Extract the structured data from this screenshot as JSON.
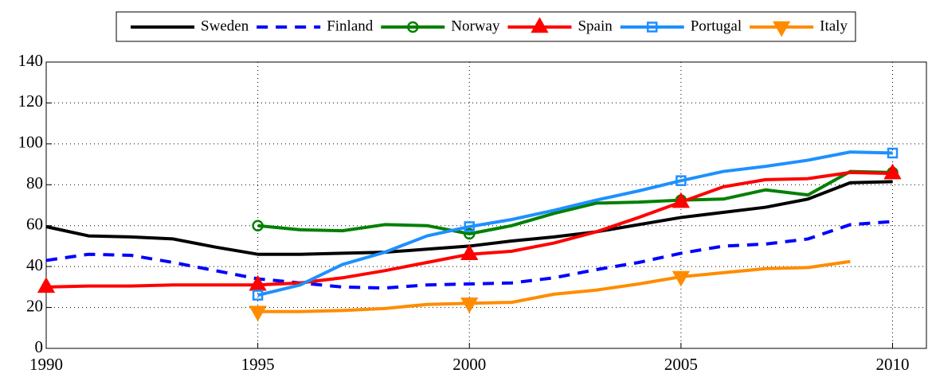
{
  "chart_data": {
    "type": "line",
    "x": [
      1990,
      1991,
      1992,
      1993,
      1994,
      1995,
      1996,
      1997,
      1998,
      1999,
      2000,
      2001,
      2002,
      2003,
      2004,
      2005,
      2006,
      2007,
      2008,
      2009,
      2010
    ],
    "xlim": [
      1990,
      2010.8
    ],
    "xticks": [
      1990,
      1995,
      2000,
      2005,
      2010
    ],
    "ylim": [
      0,
      140
    ],
    "yticks": [
      0,
      20,
      40,
      60,
      80,
      100,
      120,
      140
    ],
    "grid": true,
    "legend": "top",
    "markevery": 5,
    "series": [
      {
        "name": "Sweden",
        "color": "#000000",
        "linestyle": "solid",
        "marker": "none",
        "values": [
          59.5,
          55,
          54.5,
          53.5,
          49.5,
          46,
          46,
          46.5,
          47,
          48.5,
          50,
          52.5,
          54.5,
          57,
          60.5,
          64,
          66.5,
          69,
          73,
          81,
          81.5
        ]
      },
      {
        "name": "Finland",
        "color": "#0000ff",
        "linestyle": "dashed",
        "marker": "none",
        "values": [
          43,
          46,
          45.5,
          42,
          38,
          34,
          32,
          30,
          29.5,
          31,
          31.5,
          32,
          34.5,
          38.5,
          42,
          46.5,
          50,
          51,
          53.5,
          60.5,
          62
        ]
      },
      {
        "name": "Norway",
        "color": "#008000",
        "linestyle": "solid",
        "marker": "circle",
        "values": [
          null,
          null,
          null,
          null,
          null,
          60,
          58,
          57.5,
          60.5,
          60,
          56,
          60,
          66,
          71,
          71.5,
          72.5,
          73,
          77.5,
          75,
          86.5,
          86
        ]
      },
      {
        "name": "Spain",
        "color": "#ff0000",
        "linestyle": "solid",
        "marker": "triangle-up",
        "values": [
          30,
          30.5,
          30.5,
          31,
          31,
          31,
          32,
          34.5,
          38,
          42,
          46,
          47.5,
          51.5,
          57,
          64,
          71.5,
          79,
          82.5,
          83,
          86,
          85.5
        ]
      },
      {
        "name": "Portugal",
        "color": "#1e90ff",
        "linestyle": "solid",
        "marker": "square",
        "values": [
          null,
          null,
          null,
          null,
          null,
          26,
          31,
          41,
          47,
          55,
          59.5,
          63,
          67.5,
          72.5,
          77,
          82,
          86.5,
          89,
          92,
          96,
          95.5
        ]
      },
      {
        "name": "Italy",
        "color": "#ff8c00",
        "linestyle": "solid",
        "marker": "triangle-down",
        "values": [
          null,
          null,
          null,
          null,
          null,
          18,
          18,
          18.5,
          19.5,
          21.5,
          22,
          22.5,
          26.5,
          28.5,
          31.5,
          35,
          37,
          39,
          39.5,
          42.5,
          null
        ]
      }
    ]
  }
}
